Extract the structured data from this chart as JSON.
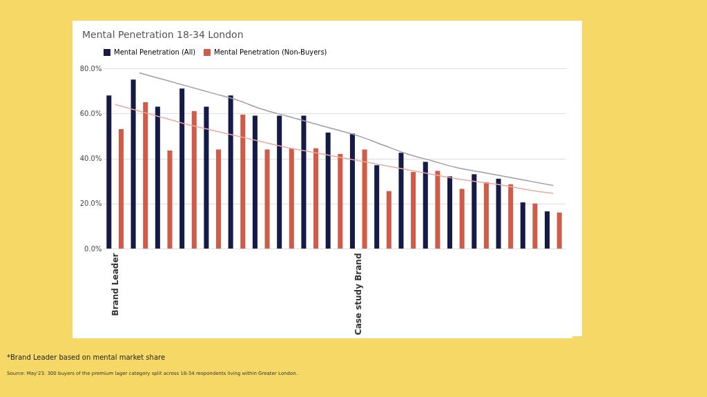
{
  "chart_data": {
    "type": "bar",
    "title": "Mental Penetration 18-34 London",
    "categories": [
      "Brand Leader",
      null,
      null,
      null,
      null,
      null,
      null,
      null,
      null,
      null,
      "Case study Brand",
      null,
      null,
      null,
      null,
      null,
      null,
      null,
      null
    ],
    "series": [
      {
        "name": "Mental Penetration (All)",
        "color": "#161a47",
        "values": [
          68,
          75,
          63,
          71,
          63,
          68,
          59,
          59,
          59,
          51.5,
          51,
          37,
          42.5,
          38.5,
          32,
          33,
          31,
          20.5,
          16.5
        ]
      },
      {
        "name": "Mental Penetration (Non-Buyers)",
        "color": "#cf5c48",
        "values": [
          53,
          65,
          43.5,
          61,
          44,
          59.5,
          44,
          44.5,
          44.5,
          42,
          44,
          25.5,
          34,
          34.5,
          26.5,
          29.5,
          28.5,
          20,
          16
        ]
      },
      {
        "type": "line",
        "color": "#9c9cab",
        "values": [
          null,
          78,
          75,
          72,
          69,
          66,
          62,
          59,
          56,
          53,
          50,
          46,
          42,
          39,
          36,
          34,
          32,
          30,
          28
        ]
      },
      {
        "type": "line",
        "color": "#eba89e",
        "values": [
          64,
          61,
          58,
          55,
          52.5,
          50,
          47.5,
          45,
          43,
          41,
          39,
          37,
          35,
          33,
          31,
          29.5,
          28,
          26,
          24.5
        ]
      }
    ],
    "ylim": [
      0,
      80
    ],
    "yticks": [
      {
        "value": 0,
        "label": "0.0%"
      },
      {
        "value": 20,
        "label": "20.0%"
      },
      {
        "value": 40,
        "label": "40.0%"
      },
      {
        "value": 60,
        "label": "60.0%"
      },
      {
        "value": 80,
        "label": "80.0%"
      }
    ],
    "grid": "y",
    "legend": "top",
    "annotations": [
      "*Brand Leader based on mental market share",
      "Source: May'23. 300 buyers of the premium lager category split across 18-34 respondents living within Greater London.."
    ]
  }
}
